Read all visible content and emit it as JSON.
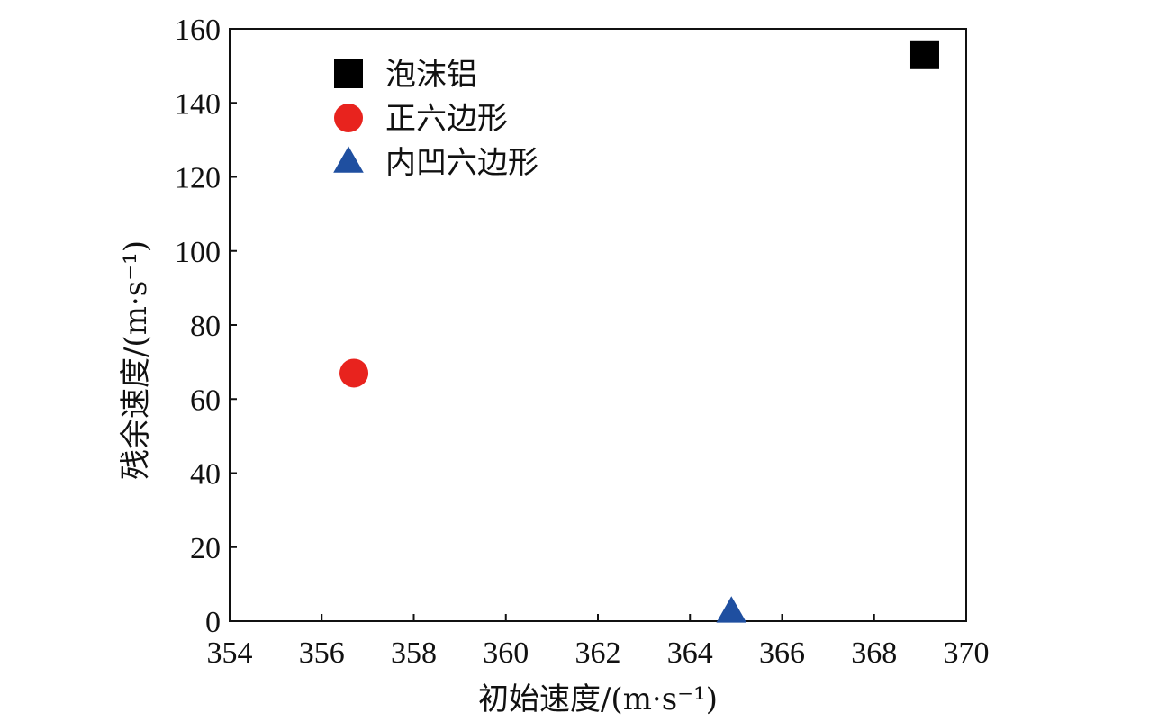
{
  "chart_data": {
    "type": "scatter",
    "xlabel": "初始速度/(m·s⁻¹)",
    "ylabel": "残余速度/(m·s⁻¹)",
    "xlim": [
      354,
      370
    ],
    "ylim": [
      0,
      160
    ],
    "x_ticks": [
      354,
      356,
      358,
      360,
      362,
      364,
      366,
      368,
      370
    ],
    "y_ticks": [
      0,
      20,
      40,
      60,
      80,
      100,
      120,
      140,
      160
    ],
    "grid": false,
    "legend_position": "top-left",
    "series": [
      {
        "name": "泡沫铝",
        "marker": "square",
        "color": "#000000",
        "points": [
          {
            "x": 369.1,
            "y": 153
          }
        ]
      },
      {
        "name": "正六边形",
        "marker": "circle",
        "color": "#e8231e",
        "points": [
          {
            "x": 356.7,
            "y": 67
          }
        ]
      },
      {
        "name": "内凹六边形",
        "marker": "triangle",
        "color": "#1f4fa0",
        "points": [
          {
            "x": 364.9,
            "y": 1
          }
        ]
      }
    ]
  }
}
